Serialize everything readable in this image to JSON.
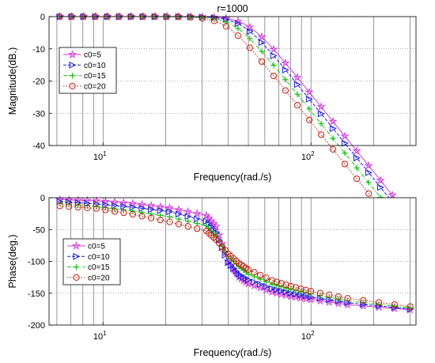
{
  "chart_data": [
    {
      "type": "line",
      "title": "r=1000",
      "xlabel": "Frequency(rad./s)",
      "ylabel": "Magnitude(dB.)",
      "x_scale": "log",
      "xlim": [
        5.5,
        320
      ],
      "ylim": [
        -40,
        0
      ],
      "yticks": [
        0,
        -10,
        -20,
        -30,
        -40
      ],
      "xticks": [
        {
          "value": 10,
          "label": "10",
          "sup": "1"
        },
        {
          "value": 100,
          "label": "10",
          "sup": "2"
        }
      ],
      "grid": true,
      "legend_position": "upper-left",
      "corner_freqs": {
        "c0=5": 50,
        "c0=10": 47,
        "c0=15": 43,
        "c0=20": 39
      },
      "series": [
        {
          "name": "c0=5",
          "color": "#d040d8",
          "marker": "star",
          "line": "solid"
        },
        {
          "name": "c0=10",
          "color": "#1a1ad8",
          "marker": "triangle-right",
          "line": "dashed"
        },
        {
          "name": "c0=15",
          "color": "#18c018",
          "marker": "plus",
          "line": "dashdot"
        },
        {
          "name": "c0=20",
          "color": "#c02010",
          "marker": "circle",
          "line": "dotted"
        }
      ]
    },
    {
      "type": "line",
      "title": "",
      "xlabel": "Frequency(rad./s)",
      "ylabel": "Phase(deg.)",
      "x_scale": "log",
      "xlim": [
        5.5,
        320
      ],
      "ylim": [
        -200,
        0
      ],
      "yticks": [
        0,
        -50,
        -100,
        -150,
        -200
      ],
      "xticks": [
        {
          "value": 10,
          "label": "10",
          "sup": "1"
        },
        {
          "value": 100,
          "label": "10",
          "sup": "2"
        }
      ],
      "grid": true,
      "legend_position": "lower-left",
      "series": [
        {
          "name": "c0=5",
          "color": "#d040d8",
          "marker": "star",
          "line": "solid",
          "x": [
            6.2,
            9.3,
            13.9,
            20.9,
            31.4,
            35,
            40,
            45,
            50,
            65,
            80,
            100,
            150,
            300
          ],
          "y": [
            -3,
            -5,
            -9,
            -16,
            -28,
            -45,
            -100,
            -125,
            -135,
            -148,
            -155,
            -160,
            -168,
            -176
          ]
        },
        {
          "name": "c0=10",
          "color": "#1a1ad8",
          "marker": "triangle-right",
          "line": "dashed",
          "x": [
            6.2,
            9.3,
            13.9,
            20.9,
            31.4,
            35,
            40,
            45,
            50,
            65,
            80,
            100,
            150,
            300
          ],
          "y": [
            -6,
            -10,
            -15,
            -22,
            -37,
            -55,
            -102,
            -120,
            -129,
            -143,
            -150,
            -156,
            -165,
            -175
          ]
        },
        {
          "name": "c0=15",
          "color": "#18c018",
          "marker": "plus",
          "line": "dashdot",
          "x": [
            6.2,
            9.3,
            13.9,
            20.9,
            31.4,
            35,
            40,
            45,
            50,
            65,
            80,
            100,
            150,
            300
          ],
          "y": [
            -9,
            -14,
            -21,
            -30,
            -44,
            -60,
            -92,
            -108,
            -120,
            -136,
            -144,
            -151,
            -162,
            -173
          ]
        },
        {
          "name": "c0=20",
          "color": "#c02010",
          "marker": "circle",
          "line": "dotted",
          "x": [
            6.2,
            9.3,
            13.9,
            20.9,
            31.4,
            35,
            40,
            45,
            50,
            65,
            80,
            100,
            150,
            300
          ],
          "y": [
            -13,
            -17,
            -26,
            -38,
            -52,
            -66,
            -88,
            -103,
            -113,
            -130,
            -139,
            -147,
            -158,
            -171
          ]
        }
      ]
    }
  ]
}
